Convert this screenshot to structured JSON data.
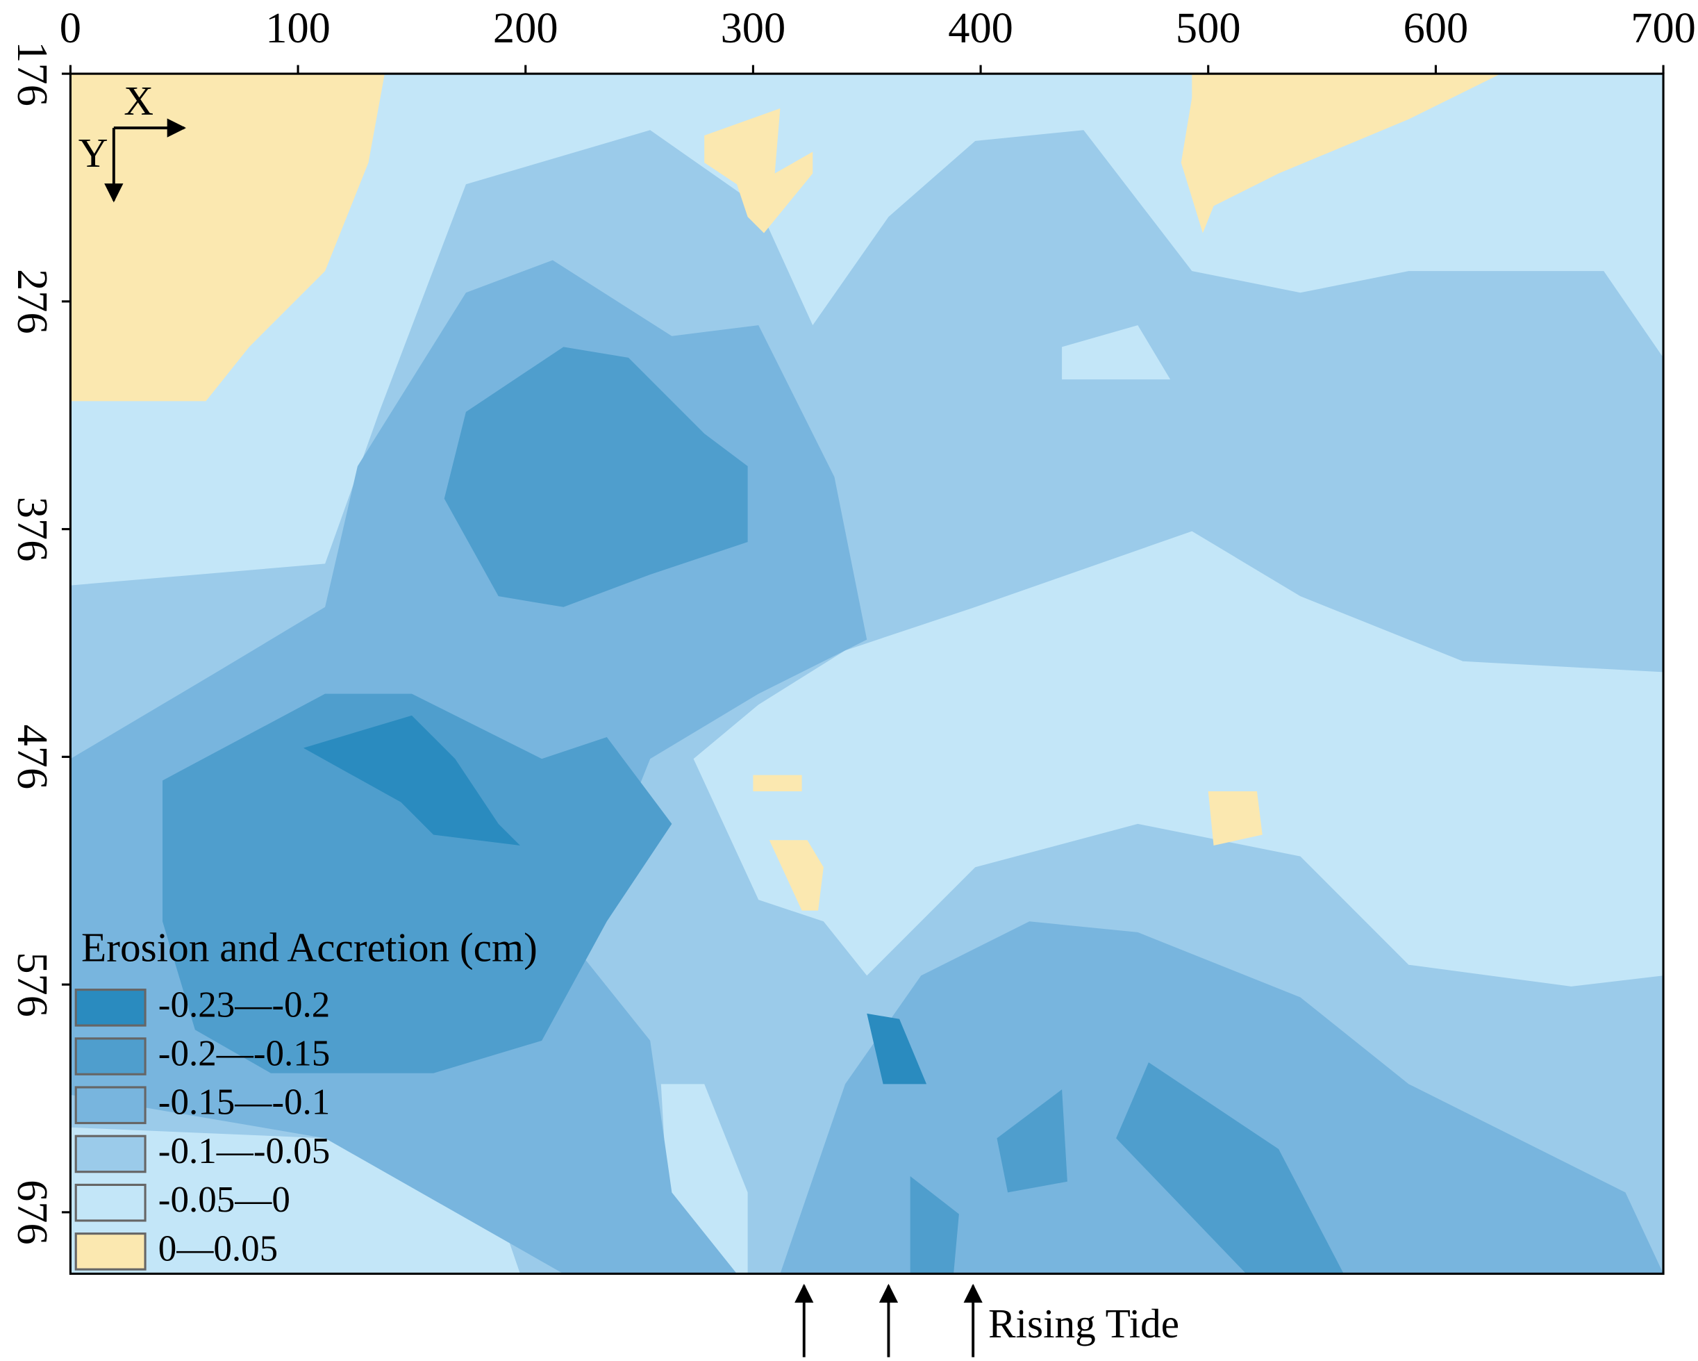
{
  "chart_data": {
    "type": "contour",
    "legend_title": "Erosion and Accretion (cm)",
    "classes": [
      {
        "name": "-0.23—-0.2",
        "color": "#2a8bbf"
      },
      {
        "name": "-0.2—-0.15",
        "color": "#4f9ecd"
      },
      {
        "name": "-0.15—-0.1",
        "color": "#78b5de"
      },
      {
        "name": "-0.1—-0.05",
        "color": "#9bcbea"
      },
      {
        "name": "-0.05—0",
        "color": "#c3e6f8"
      },
      {
        "name": "0—0.05",
        "color": "#fbe8b0"
      }
    ],
    "xlim": [
      0,
      700
    ],
    "xticks": [
      0,
      100,
      200,
      300,
      400,
      500,
      600,
      700
    ],
    "ylim": [
      176,
      703
    ],
    "yticks": [
      176,
      276,
      376,
      476,
      576,
      676
    ],
    "y_inverted": true,
    "x_axis_position": "top",
    "axis_arrows": {
      "x": "X",
      "y": "Y"
    },
    "annotation": "Rising Tide"
  }
}
